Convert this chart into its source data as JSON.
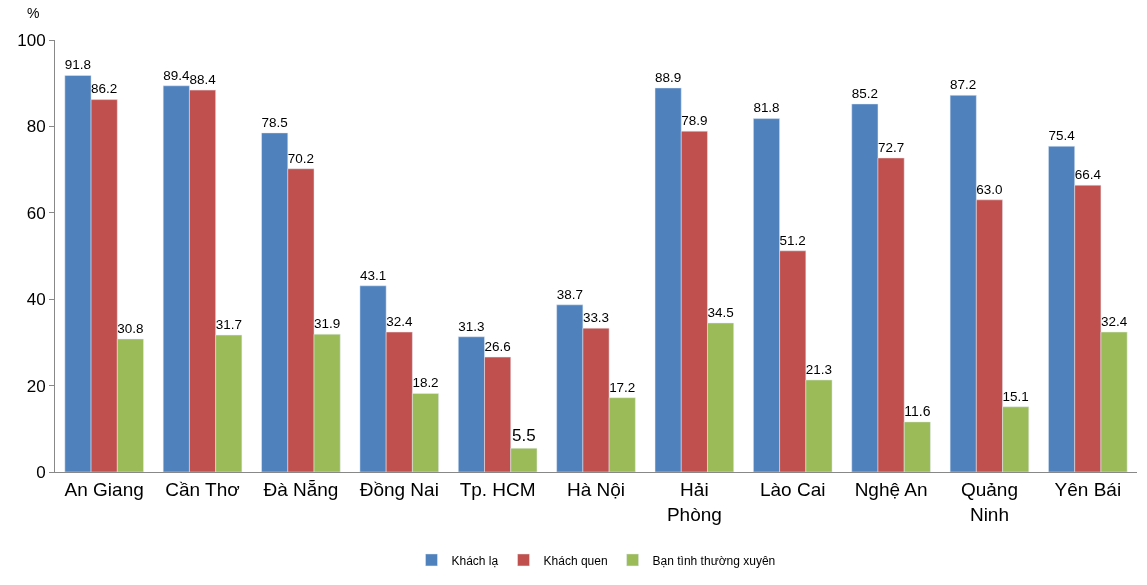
{
  "chart_data": {
    "type": "bar",
    "ylabel": "%",
    "categories": [
      "An Giang",
      "Cần Thơ",
      "Đà Nẵng",
      "Đồng Nai",
      "Tp. HCM",
      "Hà Nội",
      "Hải Phòng",
      "Lào Cai",
      "Nghệ An",
      "Quảng Ninh",
      "Yên Bái"
    ],
    "series": [
      {
        "name": "Khách lạ",
        "color": "#4f81bd",
        "values": [
          91.8,
          89.4,
          78.5,
          43.1,
          31.3,
          38.7,
          88.9,
          81.8,
          85.2,
          87.2,
          75.4
        ],
        "value_labels": [
          "91.8",
          "89.4",
          "78.5",
          "43.1",
          "31.3",
          "38.7",
          "88.9",
          "81.8",
          "85.2",
          "87.2",
          "75.4"
        ]
      },
      {
        "name": "Khách quen",
        "color": "#c0504d",
        "values": [
          86.2,
          88.4,
          70.2,
          32.4,
          26.6,
          33.3,
          78.9,
          51.2,
          72.7,
          63.0,
          66.4
        ],
        "value_labels": [
          "86.2",
          "88.4",
          "70.2",
          "32.4",
          "26.6",
          "33.3",
          "78.9",
          "51.2",
          "72.7",
          "63.0",
          "66.4"
        ]
      },
      {
        "name": "Bạn tình thường xuyên",
        "color": "#9bbb59",
        "values": [
          30.8,
          31.7,
          31.9,
          18.2,
          5.5,
          17.2,
          34.5,
          21.3,
          11.6,
          15.1,
          32.4
        ],
        "value_labels": [
          "30.8",
          "31.7",
          "31.9",
          "18.2",
          "5.5",
          "17.2",
          "34.5",
          "21.3",
          "11.6",
          "15.1",
          "32.4"
        ]
      }
    ],
    "ylim": [
      0,
      100
    ],
    "yticks": [
      0,
      20,
      40,
      60,
      80,
      100
    ],
    "legend": "bottom"
  }
}
